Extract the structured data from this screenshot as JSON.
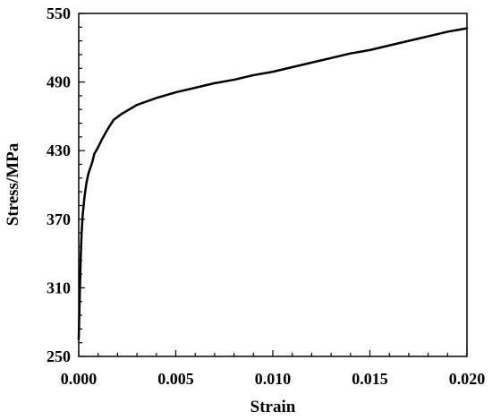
{
  "chart_data": {
    "type": "line",
    "title": "",
    "xlabel": "Strain",
    "ylabel": "Stress/MPa",
    "xlim": [
      0.0,
      0.02
    ],
    "ylim": [
      250,
      550
    ],
    "x_ticks": [
      "0.000",
      "0.005",
      "0.010",
      "0.015",
      "0.020"
    ],
    "y_ticks": [
      "250",
      "310",
      "370",
      "430",
      "490",
      "550"
    ],
    "grid": false,
    "legend": "none",
    "line_color": "#000000",
    "series": [
      {
        "x": [
          0.0,
          5e-05,
          0.0001,
          0.00015,
          0.0002,
          0.0003,
          0.0004,
          0.0005,
          0.0007,
          0.0008,
          0.001,
          0.0012,
          0.0015,
          0.0018,
          0.0022,
          0.0025,
          0.003,
          0.004,
          0.005,
          0.006,
          0.007,
          0.008,
          0.009,
          0.01,
          0.011,
          0.012,
          0.013,
          0.014,
          0.015,
          0.016,
          0.017,
          0.018,
          0.019,
          0.02
        ],
        "y": [
          265,
          300,
          335,
          358,
          373,
          390,
          402,
          410,
          420,
          427,
          433,
          440,
          449,
          457,
          462,
          465,
          470,
          476,
          481,
          485,
          489,
          492,
          496,
          499,
          503,
          507,
          511,
          515,
          518,
          522,
          526,
          530,
          534,
          537
        ]
      }
    ]
  }
}
